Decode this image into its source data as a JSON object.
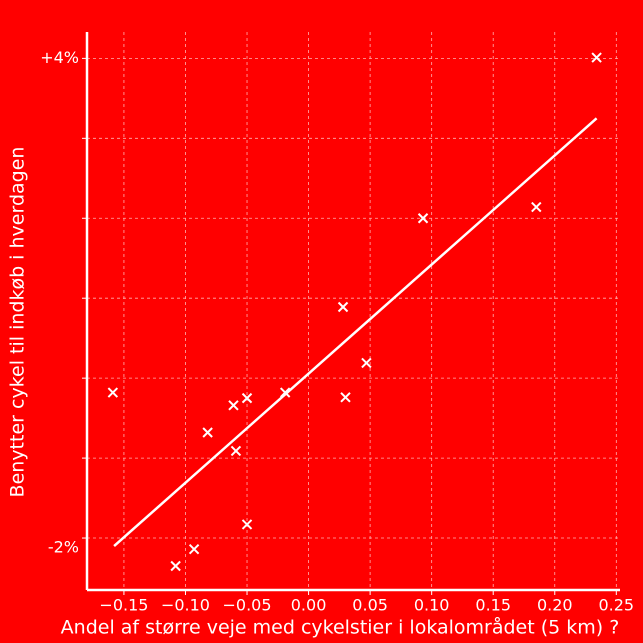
{
  "chart_data": {
    "type": "scatter",
    "xlabel": "Andel af større veje med cykelstier i lokalområdet (5 km) ?",
    "ylabel": "Benytter cykel til indkøb i hverdagen",
    "xlim": [
      -0.18,
      0.253
    ],
    "ylim": [
      -2.65,
      4.33
    ],
    "xticks": [
      {
        "value": -0.15,
        "label": "−0.15"
      },
      {
        "value": -0.1,
        "label": "−0.10"
      },
      {
        "value": -0.05,
        "label": "−0.05"
      },
      {
        "value": 0,
        "label": "0.00"
      },
      {
        "value": 0.05,
        "label": "0.05"
      },
      {
        "value": 0.1,
        "label": "0.10"
      },
      {
        "value": 0.15,
        "label": "0.15"
      },
      {
        "value": 0.2,
        "label": "0.20"
      },
      {
        "value": 0.25,
        "label": "0.25"
      }
    ],
    "yticks": [
      {
        "value": -2,
        "label": "-2%"
      },
      {
        "value": -1,
        "label": null
      },
      {
        "value": 0,
        "label": null
      },
      {
        "value": 1,
        "label": null
      },
      {
        "value": 2,
        "label": null
      },
      {
        "value": 3,
        "label": null
      },
      {
        "value": 4,
        "label": "+4%"
      }
    ],
    "grid": true,
    "series": [
      {
        "type": "scatter",
        "color": "#ffffff",
        "x": [
          -0.159,
          -0.108,
          -0.093,
          -0.082,
          -0.061,
          -0.059,
          -0.05,
          -0.05,
          -0.019,
          0.028,
          0.03,
          0.047,
          0.093,
          0.185,
          0.234
        ],
        "values": [
          -0.18,
          -2.35,
          -2.14,
          -0.68,
          -0.34,
          -0.91,
          -0.25,
          -1.83,
          -0.18,
          0.89,
          -0.24,
          0.19,
          2.0,
          2.14,
          4.01
        ]
      },
      {
        "type": "line",
        "color": "#ffffff",
        "x": [
          -0.158,
          0.234
        ],
        "values": [
          -2.1,
          3.25
        ]
      }
    ]
  }
}
